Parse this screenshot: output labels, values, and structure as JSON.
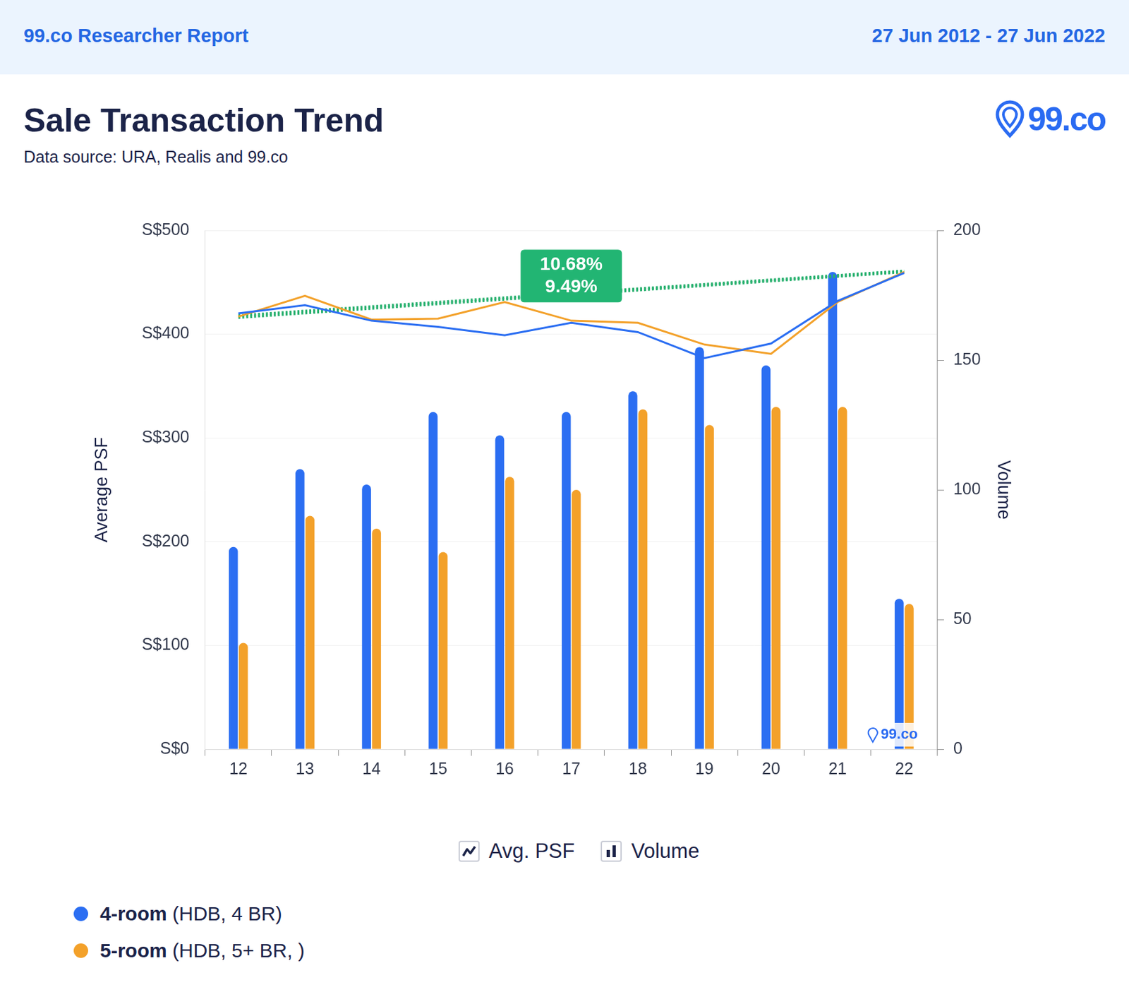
{
  "page": {
    "header_left": "99.co Researcher Report",
    "header_right": "27 Jun 2012 - 27 Jun 2022",
    "logo": "99.co"
  },
  "chart_data": {
    "type": "bar",
    "title": "Sale Transaction Trend",
    "subtitle": "Data source: URA, Realis and 99.co",
    "watermark": "99.co",
    "categories": [
      "12",
      "13",
      "14",
      "15",
      "16",
      "17",
      "18",
      "19",
      "20",
      "21",
      "22"
    ],
    "ylabel": "Average PSF",
    "y2label": "Volume",
    "ylim": [
      0,
      500
    ],
    "yticks": [
      {
        "value": 0,
        "label": "S$0"
      },
      {
        "value": 100,
        "label": "S$100"
      },
      {
        "value": 200,
        "label": "S$200"
      },
      {
        "value": 300,
        "label": "S$300"
      },
      {
        "value": 400,
        "label": "S$400"
      },
      {
        "value": 500,
        "label": "S$500"
      }
    ],
    "y2lim": [
      0,
      200
    ],
    "y2ticks": [
      0,
      50,
      100,
      150,
      200
    ],
    "grid": true,
    "legend": "bottom",
    "series": [
      {
        "name": "4-room",
        "detail": "(HDB, 4 BR)",
        "type": "line",
        "color": "#2b6ef2",
        "values": [
          420,
          428,
          413,
          407,
          399,
          411,
          402,
          377,
          391,
          432,
          459
        ]
      },
      {
        "name": "5-room",
        "detail": "(HDB, 5+ BR, )",
        "type": "line",
        "color": "#f3a12a",
        "values": [
          417,
          437,
          414,
          415,
          431,
          413,
          411,
          390,
          381,
          431,
          460
        ]
      },
      {
        "name": "4-room",
        "detail": "(HDB, 4 BR)",
        "type": "bar",
        "axis": "y2",
        "color": "#2b6ef2",
        "values": [
          78,
          108,
          102,
          130,
          121,
          130,
          138,
          155,
          148,
          184,
          58
        ]
      },
      {
        "name": "5-room",
        "detail": "(HDB, 5+ BR, )",
        "type": "bar",
        "axis": "y2",
        "color": "#f3a12a",
        "values": [
          41,
          90,
          85,
          76,
          105,
          100,
          131,
          125,
          132,
          132,
          56
        ]
      }
    ],
    "trend_lines": [
      {
        "start": 416,
        "end": 460,
        "color": "#27b06e",
        "line_style": "dotted"
      },
      {
        "start": 418,
        "end": 461,
        "color": "#27b06e",
        "line_style": "dotted"
      }
    ],
    "annotation": {
      "x": "17",
      "y": 456,
      "lines": [
        "10.68%",
        "9.49%"
      ],
      "color": "#22b573"
    },
    "measure_legend": [
      {
        "label": "Avg. PSF",
        "type": "line"
      },
      {
        "label": "Volume",
        "type": "bar"
      }
    ]
  }
}
